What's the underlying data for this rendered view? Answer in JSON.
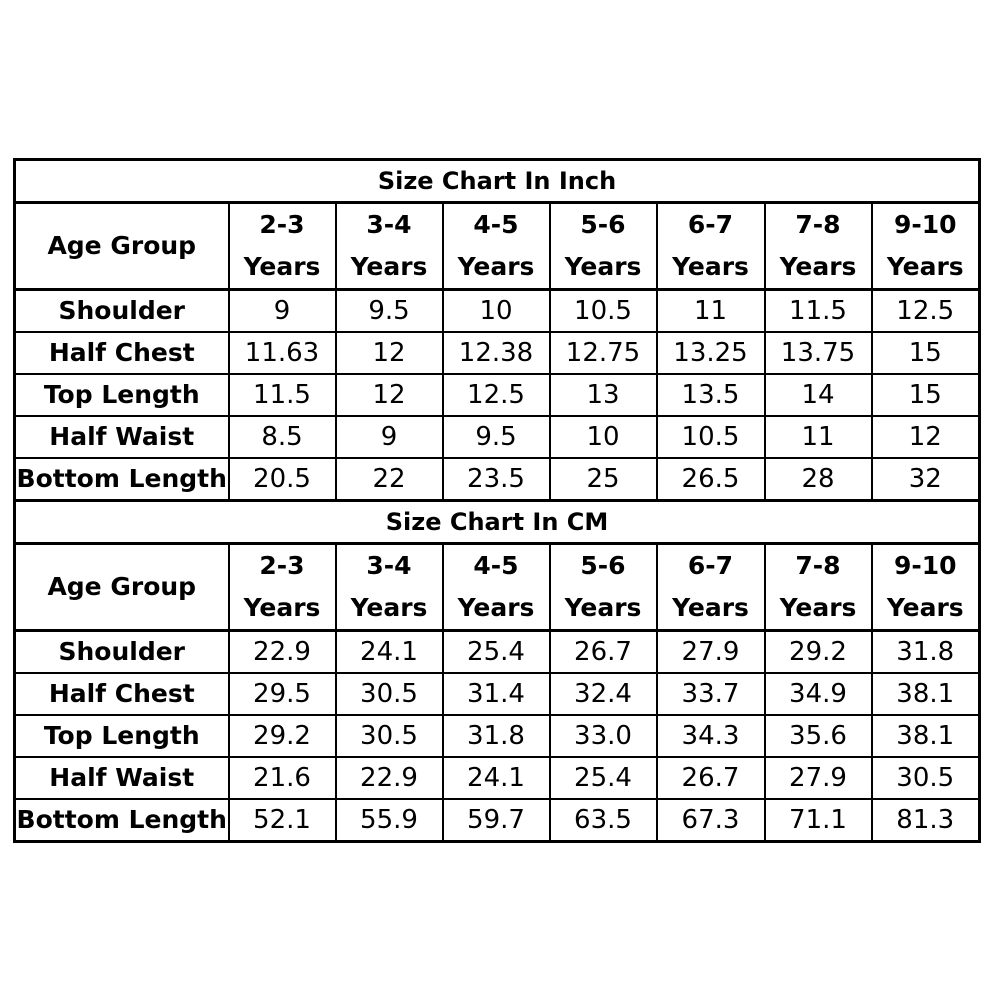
{
  "tables": [
    {
      "title": "Size Chart In Inch",
      "age_group_label": "Age Group",
      "columns": [
        {
          "range": "2-3",
          "unit": "Years"
        },
        {
          "range": "3-4",
          "unit": "Years"
        },
        {
          "range": "4-5",
          "unit": "Years"
        },
        {
          "range": "5-6",
          "unit": "Years"
        },
        {
          "range": "6-7",
          "unit": "Years"
        },
        {
          "range": "7-8",
          "unit": "Years"
        },
        {
          "range": "9-10",
          "unit": "Years"
        }
      ],
      "rows": [
        {
          "label": "Shoulder",
          "values": [
            "9",
            "9.5",
            "10",
            "10.5",
            "11",
            "11.5",
            "12.5"
          ]
        },
        {
          "label": "Half Chest",
          "values": [
            "11.63",
            "12",
            "12.38",
            "12.75",
            "13.25",
            "13.75",
            "15"
          ]
        },
        {
          "label": "Top Length",
          "values": [
            "11.5",
            "12",
            "12.5",
            "13",
            "13.5",
            "14",
            "15"
          ]
        },
        {
          "label": "Half Waist",
          "values": [
            "8.5",
            "9",
            "9.5",
            "10",
            "10.5",
            "11",
            "12"
          ]
        },
        {
          "label": "Bottom Length",
          "values": [
            "20.5",
            "22",
            "23.5",
            "25",
            "26.5",
            "28",
            "32"
          ]
        }
      ]
    },
    {
      "title": "Size Chart In CM",
      "age_group_label": "Age Group",
      "columns": [
        {
          "range": "2-3",
          "unit": "Years"
        },
        {
          "range": "3-4",
          "unit": "Years"
        },
        {
          "range": "4-5",
          "unit": "Years"
        },
        {
          "range": "5-6",
          "unit": "Years"
        },
        {
          "range": "6-7",
          "unit": "Years"
        },
        {
          "range": "7-8",
          "unit": "Years"
        },
        {
          "range": "9-10",
          "unit": "Years"
        }
      ],
      "rows": [
        {
          "label": "Shoulder",
          "values": [
            "22.9",
            "24.1",
            "25.4",
            "26.7",
            "27.9",
            "29.2",
            "31.8"
          ]
        },
        {
          "label": "Half Chest",
          "values": [
            "29.5",
            "30.5",
            "31.4",
            "32.4",
            "33.7",
            "34.9",
            "38.1"
          ]
        },
        {
          "label": "Top Length",
          "values": [
            "29.2",
            "30.5",
            "31.8",
            "33.0",
            "34.3",
            "35.6",
            "38.1"
          ]
        },
        {
          "label": "Half Waist",
          "values": [
            "21.6",
            "22.9",
            "24.1",
            "25.4",
            "26.7",
            "27.9",
            "30.5"
          ]
        },
        {
          "label": "Bottom Length",
          "values": [
            "52.1",
            "55.9",
            "59.7",
            "63.5",
            "67.3",
            "71.1",
            "81.3"
          ]
        }
      ]
    }
  ]
}
